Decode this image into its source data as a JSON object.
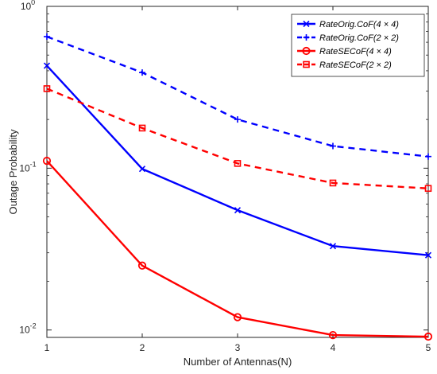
{
  "chart_data": {
    "type": "line",
    "xlabel": "Number of Antennas(N)",
    "ylabel": "Outage Probability",
    "yscale": "log",
    "xlim": [
      1,
      5
    ],
    "ylim": [
      0.009,
      1
    ],
    "x": [
      1,
      2,
      3,
      4,
      5
    ],
    "xticks": [
      "1",
      "2",
      "3",
      "4",
      "5"
    ],
    "yticks": [
      {
        "value": 1,
        "base": "10",
        "exp": "0"
      },
      {
        "value": 0.1,
        "base": "10",
        "exp": "-1"
      },
      {
        "value": 0.01,
        "base": "10",
        "exp": "-2"
      }
    ],
    "grid": false,
    "legend_position": "top-right",
    "series": [
      {
        "name": "RateOrig.CoF(4 × 4)",
        "color": "#0000ff",
        "line_style": "solid",
        "marker": "x",
        "values": [
          0.43,
          0.099,
          0.055,
          0.033,
          0.029
        ]
      },
      {
        "name": "RateOrig.CoF(2 × 2)",
        "color": "#0000ff",
        "line_style": "dashed",
        "marker": "+",
        "values": [
          0.65,
          0.39,
          0.2,
          0.137,
          0.118
        ]
      },
      {
        "name": "RateSECoF(4  × 4)",
        "color": "#ff0000",
        "line_style": "solid",
        "marker": "circle",
        "values": [
          0.111,
          0.025,
          0.012,
          0.0093,
          0.0091
        ]
      },
      {
        "name": "RateSECoF(2   × 2)",
        "color": "#ff0000",
        "line_style": "dashed",
        "marker": "square",
        "values": [
          0.31,
          0.177,
          0.107,
          0.081,
          0.075
        ]
      }
    ]
  }
}
